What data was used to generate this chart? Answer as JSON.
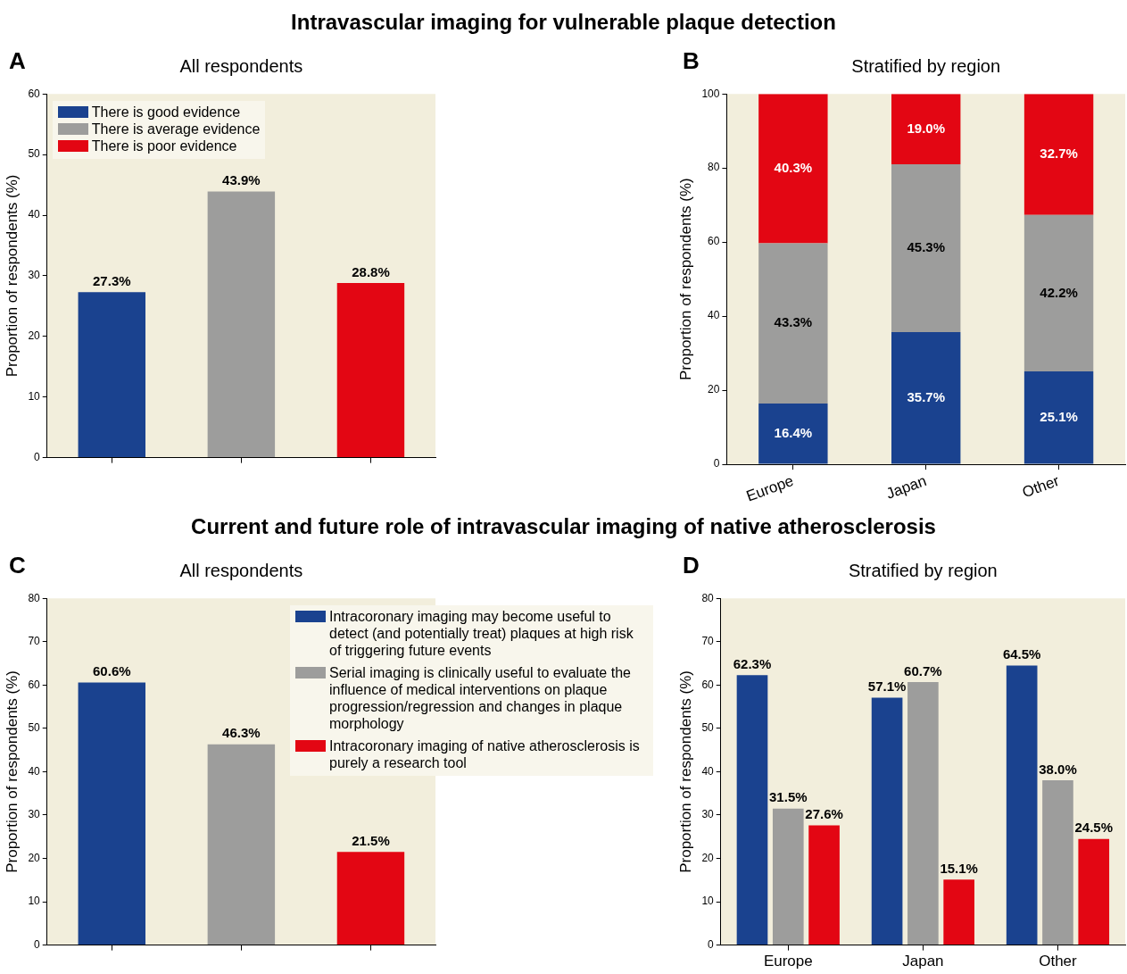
{
  "chart_data": [
    {
      "type": "bar",
      "title": "Intravascular imaging for vulnerable plaque detection",
      "subtitle": "All respondents",
      "annotations": [
        "A"
      ],
      "ylabel": "Proportion of respondents (%)",
      "categories": [
        null,
        null,
        null
      ],
      "series": [
        {
          "name": "There is good evidence",
          "color": "#1a428f",
          "values": [
            27.3,
            null,
            null
          ],
          "value_labels": [
            "27.3%",
            null,
            null
          ]
        },
        {
          "name": "There is average evidence",
          "color": "#9d9d9c",
          "values": [
            null,
            43.9,
            null
          ],
          "value_labels": [
            null,
            "43.9%",
            null
          ]
        },
        {
          "name": "There is poor evidence",
          "color": "#e30613",
          "values": [
            null,
            null,
            28.8
          ],
          "value_labels": [
            null,
            null,
            "28.8%"
          ]
        }
      ],
      "ylim": [
        0,
        60
      ],
      "yticks": [
        0,
        10,
        20,
        30,
        40,
        50,
        60
      ],
      "grid": false,
      "legend": "top left"
    },
    {
      "type": "bar",
      "subtitle": "Stratified by region",
      "annotations": [
        "B"
      ],
      "ylabel": "Proportion of respondents (%)",
      "categories": [
        "Europe",
        "Japan",
        "Other"
      ],
      "stacked": true,
      "series": [
        {
          "color": "#1a428f",
          "values": [
            16.4,
            35.7,
            25.1
          ],
          "value_labels": [
            "16.4%",
            "35.7%",
            "25.1%"
          ]
        },
        {
          "color": "#9d9d9c",
          "values": [
            43.3,
            45.3,
            42.2
          ],
          "value_labels": [
            "43.3%",
            "45.3%",
            "42.2%"
          ]
        },
        {
          "color": "#e30613",
          "values": [
            40.3,
            19.0,
            32.7
          ],
          "value_labels": [
            "40.3%",
            "19.0%",
            "32.7%"
          ]
        }
      ],
      "ylim": [
        0,
        100
      ],
      "yticks": [
        0,
        20,
        40,
        60,
        80,
        100
      ],
      "grid": false
    },
    {
      "type": "bar",
      "title": "Current and future role of intravascular imaging of native atherosclerosis",
      "subtitle": "All respondents",
      "annotations": [
        "C"
      ],
      "ylabel": "Proportion of respondents (%)",
      "categories": [
        null,
        null,
        null
      ],
      "series": [
        {
          "name": "Intracoronary imaging may become useful to detect (and potentially treat) plaques at high risk of triggering future events",
          "color": "#1a428f",
          "values": [
            60.6,
            null,
            null
          ],
          "value_labels": [
            "60.6%",
            null,
            null
          ]
        },
        {
          "name": "Serial imaging is clinically useful to evaluate the influence of medical interventions on plaque progression/regression and changes in plaque morphology",
          "color": "#9d9d9c",
          "values": [
            null,
            46.3,
            null
          ],
          "value_labels": [
            null,
            "46.3%",
            null
          ]
        },
        {
          "name": "Intracoronary imaging of native atherosclerosis is purely a research tool",
          "color": "#e30613",
          "values": [
            null,
            null,
            21.5
          ],
          "value_labels": [
            null,
            null,
            "21.5%"
          ]
        }
      ],
      "ylim": [
        0,
        80
      ],
      "yticks": [
        0,
        10,
        20,
        30,
        40,
        50,
        60,
        70,
        80
      ],
      "grid": false,
      "legend": "top right"
    },
    {
      "type": "bar",
      "subtitle": "Stratified by region",
      "annotations": [
        "D"
      ],
      "ylabel": "Proportion of respondents (%)",
      "categories": [
        "Europe",
        "Japan",
        "Other"
      ],
      "series": [
        {
          "color": "#1a428f",
          "values": [
            62.3,
            57.1,
            64.5
          ],
          "value_labels": [
            "62.3%",
            "57.1%",
            "64.5%"
          ]
        },
        {
          "color": "#9d9d9c",
          "values": [
            31.5,
            60.7,
            38.0
          ],
          "value_labels": [
            "31.5%",
            "60.7%",
            "38.0%"
          ]
        },
        {
          "color": "#e30613",
          "values": [
            27.6,
            15.1,
            24.5
          ],
          "value_labels": [
            "27.6%",
            "15.1%",
            "24.5%"
          ]
        }
      ],
      "ylim": [
        0,
        80
      ],
      "yticks": [
        0,
        10,
        20,
        30,
        40,
        50,
        60,
        70,
        80
      ],
      "grid": false
    }
  ]
}
